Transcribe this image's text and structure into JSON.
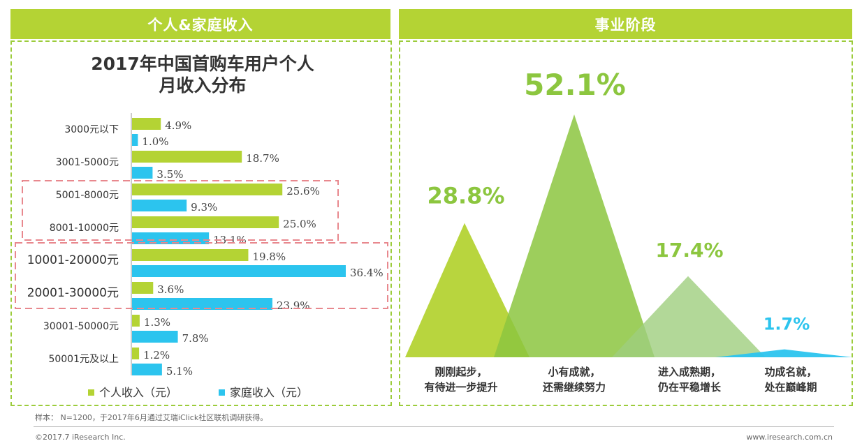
{
  "headers": {
    "left": "个人&家庭收入",
    "right": "事业阶段"
  },
  "income_title": [
    "2017年中国首购车用户个人",
    "月收入分布"
  ],
  "footer": {
    "note": "样本： N=1200，于2017年6月通过艾瑞iClick社区联机调研获得。",
    "copyright": "©2017.7 iResearch Inc.",
    "site": "www.iresearch.com.cn"
  },
  "colors": {
    "personal": "#b4d334",
    "family": "#2cc4ee",
    "highlight": "#e8888e"
  },
  "chart_data": [
    {
      "type": "bar",
      "orientation": "horizontal",
      "title": "2017年中国首购车用户个人月收入分布",
      "categories": [
        "3000元以下",
        "3001-5000元",
        "5001-8000元",
        "8001-10000元",
        "10001-20000元",
        "20001-30000元",
        "30001-50000元",
        "50001元及以上"
      ],
      "series": [
        {
          "name": "个人收入（元）",
          "values": [
            4.9,
            18.7,
            25.6,
            25.0,
            19.8,
            3.6,
            1.3,
            1.2
          ],
          "labels": [
            "4.9%",
            "18.7%",
            "25.6%",
            "25.0%",
            "19.8%",
            "3.6%",
            "1.3%",
            "1.2%"
          ]
        },
        {
          "name": "家庭收入（元）",
          "values": [
            1.0,
            3.5,
            9.3,
            13.1,
            36.4,
            23.9,
            7.8,
            5.1
          ],
          "labels": [
            "1.0%",
            "3.5%",
            "9.3%",
            "13.1%",
            "36.4%",
            "23.9%",
            "7.8%",
            "5.1%"
          ]
        }
      ],
      "xlim": [
        0,
        36.4
      ],
      "legend": "bottom",
      "highlight_groups": [
        [
          "5001-8000元",
          "8001-10000元"
        ],
        [
          "10001-20000元",
          "20001-30000元"
        ]
      ]
    },
    {
      "type": "bar",
      "style": "triangle-peaks",
      "title": "事业阶段",
      "categories": [
        "刚刚起步，有待进一步提升",
        "小有成就，还需继续努力",
        "进入成熟期，仍在平稳增长",
        "功成名就，处在巅峰期"
      ],
      "category_lines": [
        [
          "刚刚起步，",
          "有待进一步提升"
        ],
        [
          "小有成就，",
          "还需继续努力"
        ],
        [
          "进入成熟期，",
          "仍在平稳增长"
        ],
        [
          "功成名就，",
          "处在巅峰期"
        ]
      ],
      "values": [
        28.8,
        52.1,
        17.4,
        1.7
      ],
      "labels": [
        "28.8%",
        "52.1%",
        "17.4%",
        "1.7%"
      ],
      "colors": [
        "#b4d334",
        "#8cc63f",
        "#9fce7e",
        "#2cc4ee"
      ]
    }
  ]
}
